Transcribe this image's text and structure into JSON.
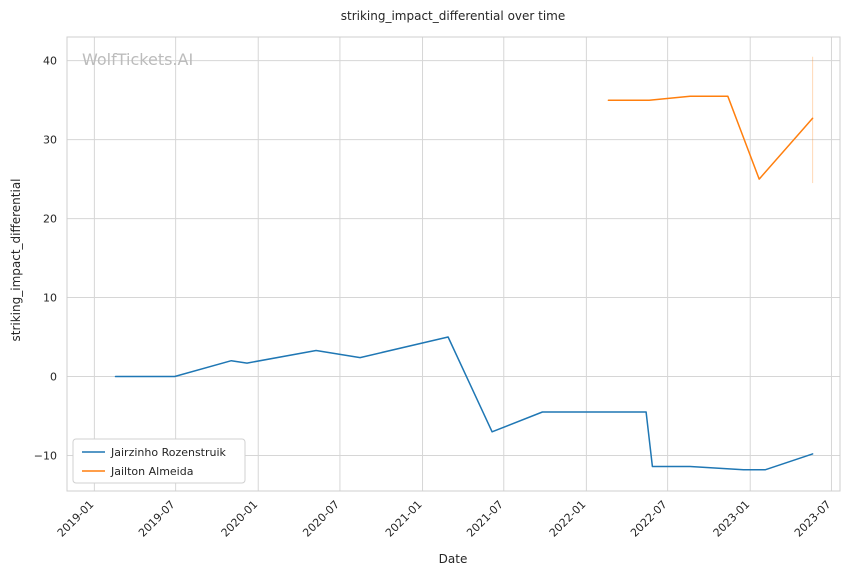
{
  "chart_data": {
    "type": "line",
    "title": "striking_impact_differential over time",
    "xlabel": "Date",
    "ylabel": "striking_impact_differential",
    "watermark": "WolfTickets.AI",
    "grid": true,
    "legend_position": "lower-left",
    "xlim": [
      "2018-11-01",
      "2023-07-20"
    ],
    "ylim": [
      -14.5,
      43
    ],
    "x_ticks": [
      "2019-01",
      "2019-07",
      "2020-01",
      "2020-07",
      "2021-01",
      "2021-07",
      "2022-01",
      "2022-07",
      "2023-01",
      "2023-07"
    ],
    "y_ticks": [
      -10,
      0,
      10,
      20,
      30,
      40
    ],
    "series": [
      {
        "name": "Jairzinho Rozenstruik",
        "color": "#1f77b4",
        "points": [
          {
            "x": "2019-02-17",
            "y": 0
          },
          {
            "x": "2019-06-29",
            "y": 0
          },
          {
            "x": "2019-11-02",
            "y": 2.0
          },
          {
            "x": "2019-12-07",
            "y": 1.7
          },
          {
            "x": "2020-05-09",
            "y": 3.3
          },
          {
            "x": "2020-08-15",
            "y": 2.4
          },
          {
            "x": "2021-02-27",
            "y": 5.0
          },
          {
            "x": "2021-06-05",
            "y": -7.0
          },
          {
            "x": "2021-09-25",
            "y": -4.5
          },
          {
            "x": "2022-05-14",
            "y": -4.5
          },
          {
            "x": "2022-05-28",
            "y": -11.4
          },
          {
            "x": "2022-08-20",
            "y": -11.4
          },
          {
            "x": "2022-12-17",
            "y": -11.8
          },
          {
            "x": "2023-02-04",
            "y": -11.8
          },
          {
            "x": "2023-05-20",
            "y": -9.8
          }
        ]
      },
      {
        "name": "Jailton Almeida",
        "color": "#ff7f0e",
        "points": [
          {
            "x": "2022-02-19",
            "y": 35.0
          },
          {
            "x": "2022-05-21",
            "y": 35.0
          },
          {
            "x": "2022-08-20",
            "y": 35.5
          },
          {
            "x": "2022-11-12",
            "y": 35.5
          },
          {
            "x": "2023-01-21",
            "y": 25.0
          },
          {
            "x": "2023-05-20",
            "y": 32.7
          }
        ]
      }
    ]
  }
}
